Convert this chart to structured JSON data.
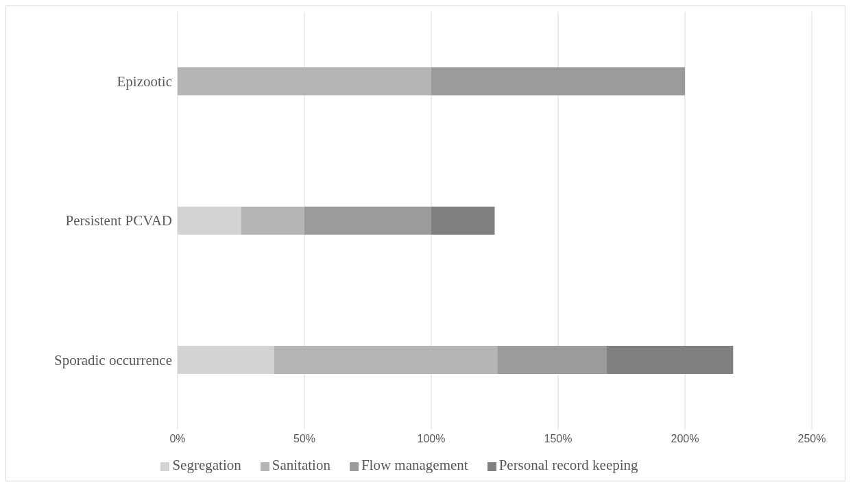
{
  "chart_data": {
    "type": "bar",
    "orientation": "horizontal",
    "stacked": true,
    "categories": [
      "Epizootic",
      "Persistent PCVAD",
      "Sporadic occurrence"
    ],
    "series": [
      {
        "name": "Segregation",
        "color": "#d3d3d3",
        "values": [
          0,
          25,
          38
        ]
      },
      {
        "name": "Sanitation",
        "color": "#b5b5b5",
        "values": [
          100,
          25,
          88
        ]
      },
      {
        "name": "Flow management",
        "color": "#9b9b9b",
        "values": [
          100,
          50,
          43
        ]
      },
      {
        "name": "Personal record keeping",
        "color": "#808080",
        "values": [
          0,
          25,
          50
        ]
      }
    ],
    "xlim": [
      0,
      250
    ],
    "xticks": [
      {
        "value": 0,
        "label": "0%"
      },
      {
        "value": 50,
        "label": "50%"
      },
      {
        "value": 100,
        "label": "100%"
      },
      {
        "value": 150,
        "label": "150%"
      },
      {
        "value": 200,
        "label": "200%"
      },
      {
        "value": 250,
        "label": "250%"
      }
    ],
    "grid": "x",
    "legend": "bottom"
  }
}
